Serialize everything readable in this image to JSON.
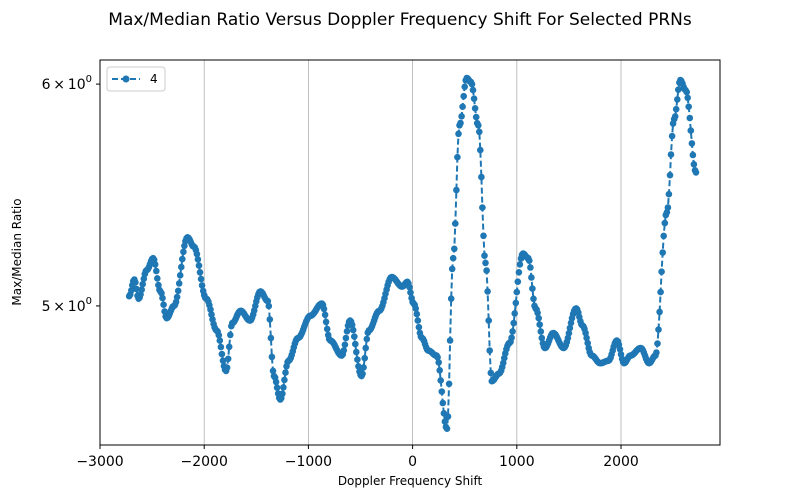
{
  "chart_data": {
    "type": "line",
    "title": "Max/Median Ratio Versus Doppler Frequency Shift For Selected PRNs",
    "xlabel": "Doppler Frequency Shift",
    "ylabel": "Max/Median Ratio",
    "x_scale": "linear",
    "y_scale": "log",
    "xlim": [
      -3000,
      2950
    ],
    "ylim": [
      4.46,
      6.12
    ],
    "x_ticks": [
      -3000,
      -2000,
      -1000,
      0,
      1000,
      2000
    ],
    "x_tick_labels": [
      "−3000",
      "−2000",
      "−1000",
      "0",
      "1000",
      "2000"
    ],
    "y_ticks": [
      5.0,
      6.0
    ],
    "y_tick_labels": [
      {
        "mantissa": "5",
        "times": "×",
        "base": "10",
        "exponent": "0"
      },
      {
        "mantissa": "6",
        "times": "×",
        "base": "10",
        "exponent": "0"
      }
    ],
    "grid": "vertical lines at x ticks",
    "legend_position": "top-left",
    "series": [
      {
        "name": "4",
        "color": "#1f77b4",
        "line_style": "dashed",
        "marker": "circle",
        "keypoints": [
          [
            -2720,
            5.04
          ],
          [
            -2670,
            5.11
          ],
          [
            -2630,
            5.03
          ],
          [
            -2550,
            5.15
          ],
          [
            -2490,
            5.2
          ],
          [
            -2420,
            5.06
          ],
          [
            -2360,
            4.95
          ],
          [
            -2290,
            5.0
          ],
          [
            -2160,
            5.29
          ],
          [
            -2100,
            5.25
          ],
          [
            -1980,
            5.03
          ],
          [
            -1880,
            4.9
          ],
          [
            -1790,
            4.74
          ],
          [
            -1730,
            4.93
          ],
          [
            -1650,
            4.98
          ],
          [
            -1560,
            4.94
          ],
          [
            -1460,
            5.06
          ],
          [
            -1390,
            5.02
          ],
          [
            -1330,
            4.72
          ],
          [
            -1270,
            4.63
          ],
          [
            -1190,
            4.78
          ],
          [
            -1100,
            4.87
          ],
          [
            -980,
            4.96
          ],
          [
            -870,
            5.01
          ],
          [
            -790,
            4.86
          ],
          [
            -680,
            4.8
          ],
          [
            -600,
            4.94
          ],
          [
            -490,
            4.72
          ],
          [
            -420,
            4.9
          ],
          [
            -320,
            4.98
          ],
          [
            -200,
            5.12
          ],
          [
            -100,
            5.08
          ],
          [
            -50,
            5.1
          ],
          [
            10,
            5.01
          ],
          [
            90,
            4.87
          ],
          [
            150,
            4.82
          ],
          [
            230,
            4.8
          ],
          [
            330,
            4.52
          ],
          [
            390,
            5.2
          ],
          [
            450,
            5.8
          ],
          [
            520,
            6.03
          ],
          [
            560,
            6.01
          ],
          [
            630,
            5.8
          ],
          [
            700,
            5.18
          ],
          [
            760,
            4.7
          ],
          [
            830,
            4.73
          ],
          [
            930,
            4.85
          ],
          [
            1060,
            5.22
          ],
          [
            1110,
            5.2
          ],
          [
            1180,
            4.99
          ],
          [
            1270,
            4.83
          ],
          [
            1350,
            4.89
          ],
          [
            1450,
            4.83
          ],
          [
            1570,
            4.99
          ],
          [
            1630,
            4.92
          ],
          [
            1720,
            4.8
          ],
          [
            1800,
            4.77
          ],
          [
            1880,
            4.78
          ],
          [
            1960,
            4.86
          ],
          [
            2030,
            4.77
          ],
          [
            2090,
            4.8
          ],
          [
            2190,
            4.83
          ],
          [
            2270,
            4.77
          ],
          [
            2330,
            4.8
          ],
          [
            2440,
            5.4
          ],
          [
            2510,
            5.83
          ],
          [
            2570,
            6.02
          ],
          [
            2620,
            5.97
          ],
          [
            2720,
            5.58
          ]
        ]
      }
    ]
  }
}
